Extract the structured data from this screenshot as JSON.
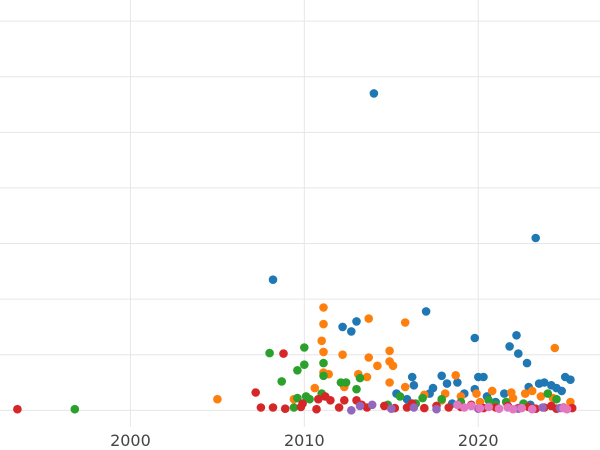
{
  "chart_data": {
    "type": "scatter",
    "title": "",
    "xlabel": "",
    "ylabel": "",
    "xlim": [
      1992.5,
      2027
    ],
    "ylim": [
      -0.3,
      7.2
    ],
    "x_ticks": [
      {
        "value": 2000,
        "label": "2000"
      },
      {
        "value": 2010,
        "label": "2010"
      },
      {
        "value": 2020,
        "label": "2020"
      }
    ],
    "y_gridlines": [
      0,
      1,
      2,
      3,
      4,
      5,
      6,
      7
    ],
    "grid": true,
    "legend": "none",
    "series": [
      {
        "color": "#1f77b4",
        "points": [
          [
            2014.0,
            5.7
          ],
          [
            2023.3,
            3.1
          ],
          [
            2008.2,
            2.35
          ],
          [
            2013.0,
            1.6
          ],
          [
            2012.2,
            1.5
          ],
          [
            2012.7,
            1.42
          ],
          [
            2017.0,
            1.78
          ],
          [
            2019.8,
            1.3
          ],
          [
            2021.8,
            1.15
          ],
          [
            2022.2,
            1.35
          ],
          [
            2022.3,
            1.02
          ],
          [
            2022.8,
            0.85
          ],
          [
            2016.2,
            0.6
          ],
          [
            2016.3,
            0.45
          ],
          [
            2017.9,
            0.62
          ],
          [
            2018.8,
            0.5
          ],
          [
            2017.4,
            0.4
          ],
          [
            2020.0,
            0.6
          ],
          [
            2020.3,
            0.6
          ],
          [
            2023.5,
            0.48
          ],
          [
            2024.2,
            0.45
          ],
          [
            2025.0,
            0.6
          ],
          [
            2025.3,
            0.55
          ],
          [
            2024.8,
            0.35
          ],
          [
            2015.3,
            0.3
          ],
          [
            2019.2,
            0.3
          ],
          [
            2020.5,
            0.25
          ],
          [
            2021.5,
            0.3
          ],
          [
            2022.9,
            0.42
          ],
          [
            2017.2,
            0.3
          ],
          [
            2018.2,
            0.48
          ],
          [
            2019.8,
            0.38
          ],
          [
            2023.8,
            0.5
          ],
          [
            2024.5,
            0.4
          ],
          [
            2015.9,
            0.2
          ],
          [
            2021.0,
            0.15
          ],
          [
            2018.5,
            0.12
          ],
          [
            2023.0,
            0.1
          ]
        ]
      },
      {
        "color": "#ff7f0e",
        "points": [
          [
            2011.1,
            1.85
          ],
          [
            2011.1,
            1.55
          ],
          [
            2013.7,
            1.65
          ],
          [
            2015.8,
            1.58
          ],
          [
            2011.0,
            1.25
          ],
          [
            2011.1,
            1.05
          ],
          [
            2012.2,
            1.0
          ],
          [
            2014.9,
            1.07
          ],
          [
            2013.7,
            0.95
          ],
          [
            2014.2,
            0.8
          ],
          [
            2015.1,
            0.8
          ],
          [
            2014.9,
            0.88
          ],
          [
            2011.1,
            0.68
          ],
          [
            2011.4,
            0.65
          ],
          [
            2013.1,
            0.65
          ],
          [
            2013.6,
            0.6
          ],
          [
            2018.7,
            0.63
          ],
          [
            2024.4,
            1.12
          ],
          [
            2005.0,
            0.2
          ],
          [
            2009.4,
            0.2
          ],
          [
            2010.6,
            0.4
          ],
          [
            2012.3,
            0.42
          ],
          [
            2014.9,
            0.5
          ],
          [
            2015.8,
            0.42
          ],
          [
            2016.9,
            0.28
          ],
          [
            2018.1,
            0.3
          ],
          [
            2019.0,
            0.25
          ],
          [
            2019.9,
            0.3
          ],
          [
            2020.8,
            0.35
          ],
          [
            2021.9,
            0.32
          ],
          [
            2022.7,
            0.3
          ],
          [
            2023.1,
            0.35
          ],
          [
            2023.6,
            0.25
          ],
          [
            2024.3,
            0.22
          ],
          [
            2025.3,
            0.15
          ],
          [
            2017.9,
            0.18
          ],
          [
            2022.0,
            0.22
          ],
          [
            2020.1,
            0.15
          ]
        ]
      },
      {
        "color": "#2ca02c",
        "points": [
          [
            1996.8,
            0.02
          ],
          [
            2008.0,
            1.03
          ],
          [
            2010.0,
            1.13
          ],
          [
            2011.1,
            0.85
          ],
          [
            2010.0,
            0.82
          ],
          [
            2009.6,
            0.72
          ],
          [
            2008.7,
            0.52
          ],
          [
            2011.1,
            0.62
          ],
          [
            2012.1,
            0.5
          ],
          [
            2012.4,
            0.5
          ],
          [
            2013.2,
            0.58
          ],
          [
            2013.0,
            0.38
          ],
          [
            2011.0,
            0.3
          ],
          [
            2010.1,
            0.25
          ],
          [
            2009.6,
            0.22
          ],
          [
            2010.3,
            0.2
          ],
          [
            2015.5,
            0.25
          ],
          [
            2016.8,
            0.22
          ],
          [
            2017.9,
            0.2
          ],
          [
            2019.0,
            0.15
          ],
          [
            2020.6,
            0.18
          ],
          [
            2021.6,
            0.15
          ],
          [
            2022.6,
            0.12
          ],
          [
            2024.0,
            0.3
          ],
          [
            2024.5,
            0.2
          ],
          [
            2009.4,
            0.05
          ],
          [
            2014.8,
            0.1
          ],
          [
            2016.4,
            0.12
          ],
          [
            2021.0,
            0.1
          ]
        ]
      },
      {
        "color": "#d62728",
        "points": [
          [
            1993.5,
            0.02
          ],
          [
            2008.8,
            1.02
          ],
          [
            2007.2,
            0.32
          ],
          [
            2007.5,
            0.05
          ],
          [
            2008.2,
            0.05
          ],
          [
            2008.9,
            0.03
          ],
          [
            2009.8,
            0.06
          ],
          [
            2009.9,
            0.12
          ],
          [
            2010.8,
            0.2
          ],
          [
            2010.7,
            0.02
          ],
          [
            2011.2,
            0.25
          ],
          [
            2011.5,
            0.18
          ],
          [
            2012.0,
            0.05
          ],
          [
            2012.3,
            0.18
          ],
          [
            2013.0,
            0.18
          ],
          [
            2013.3,
            0.1
          ],
          [
            2013.6,
            0.05
          ],
          [
            2014.6,
            0.08
          ],
          [
            2015.2,
            0.04
          ],
          [
            2015.9,
            0.05
          ],
          [
            2016.2,
            0.12
          ],
          [
            2016.9,
            0.04
          ],
          [
            2017.6,
            0.08
          ],
          [
            2018.3,
            0.05
          ],
          [
            2019.0,
            0.06
          ],
          [
            2019.6,
            0.1
          ],
          [
            2020.3,
            0.04
          ],
          [
            2021.0,
            0.05
          ],
          [
            2021.7,
            0.08
          ],
          [
            2022.3,
            0.04
          ],
          [
            2022.9,
            0.06
          ],
          [
            2023.3,
            0.03
          ],
          [
            2023.8,
            0.05
          ],
          [
            2024.2,
            0.08
          ],
          [
            2024.5,
            0.03
          ],
          [
            2024.9,
            0.05
          ],
          [
            2025.4,
            0.04
          ]
        ]
      },
      {
        "color": "#9467bd",
        "points": [
          [
            2012.7,
            0.0
          ],
          [
            2013.2,
            0.08
          ],
          [
            2013.9,
            0.1
          ],
          [
            2015.0,
            0.03
          ],
          [
            2016.3,
            0.05
          ],
          [
            2017.6,
            0.02
          ],
          [
            2020.0,
            0.03
          ],
          [
            2022.3,
            0.03
          ],
          [
            2023.7,
            0.05
          ],
          [
            2024.7,
            0.04
          ]
        ]
      },
      {
        "color": "#e377c2",
        "points": [
          [
            2018.8,
            0.1
          ],
          [
            2019.2,
            0.05
          ],
          [
            2019.6,
            0.08
          ],
          [
            2020.1,
            0.04
          ],
          [
            2020.6,
            0.06
          ],
          [
            2021.2,
            0.03
          ],
          [
            2021.7,
            0.05
          ],
          [
            2022.0,
            0.02
          ],
          [
            2022.5,
            0.04
          ],
          [
            2023.1,
            0.02
          ],
          [
            2024.9,
            0.04
          ],
          [
            2025.1,
            0.02
          ]
        ]
      }
    ]
  }
}
